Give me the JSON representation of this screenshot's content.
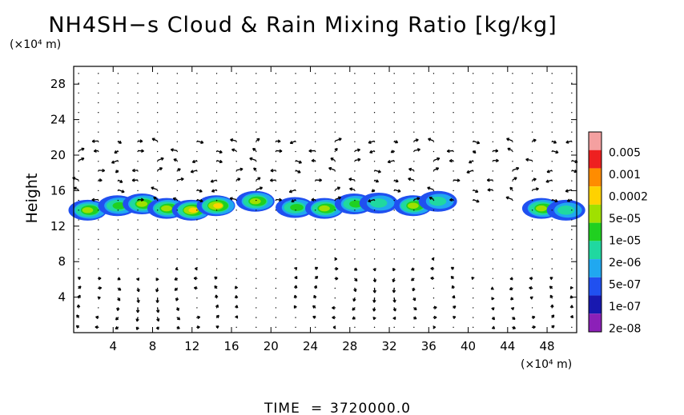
{
  "chart_data": {
    "type": "heatmap",
    "title": "NH4SH−s Cloud & Rain Mixing Ratio [kg/kg]",
    "y_unit": "(×10⁴ m)",
    "x_unit": "(×10⁴ m)",
    "ylabel": "Height",
    "xlabel": "",
    "xlim": [
      0,
      51
    ],
    "ylim": [
      0,
      30
    ],
    "x_ticks": [
      "4",
      "8",
      "12",
      "16",
      "20",
      "24",
      "28",
      "32",
      "36",
      "40",
      "44",
      "48"
    ],
    "y_ticks": [
      "4",
      "8",
      "12",
      "16",
      "20",
      "24",
      "28"
    ],
    "x_tick_values": [
      4,
      8,
      12,
      16,
      20,
      24,
      28,
      32,
      36,
      40,
      44,
      48
    ],
    "y_tick_values": [
      4,
      8,
      12,
      16,
      20,
      24,
      28
    ],
    "colorbar": {
      "labels": [
        "0.005",
        "0.001",
        "0.0002",
        "5e-05",
        "1e-05",
        "2e-06",
        "5e-07",
        "1e-07",
        "2e-08"
      ],
      "colors": [
        "#f4a0a0",
        "#ee2020",
        "#ff8c00",
        "#ffd200",
        "#a0e000",
        "#20d020",
        "#20d8a0",
        "#20a8f0",
        "#2050f0",
        "#1818b0",
        "#8c20b8"
      ]
    },
    "cloud_cells": [
      {
        "x": 1.5,
        "y": 13.8,
        "peak": 5
      },
      {
        "x": 4.5,
        "y": 14.3,
        "peak": 4
      },
      {
        "x": 7.0,
        "y": 14.5,
        "peak": 5
      },
      {
        "x": 9.5,
        "y": 14.0,
        "peak": 5
      },
      {
        "x": 12.0,
        "y": 13.8,
        "peak": 6
      },
      {
        "x": 14.5,
        "y": 14.3,
        "peak": 6
      },
      {
        "x": 18.5,
        "y": 14.8,
        "peak": 5
      },
      {
        "x": 22.5,
        "y": 14.1,
        "peak": 4
      },
      {
        "x": 25.5,
        "y": 14.0,
        "peak": 5
      },
      {
        "x": 28.5,
        "y": 14.5,
        "peak": 4
      },
      {
        "x": 31.0,
        "y": 14.6,
        "peak": 3
      },
      {
        "x": 34.5,
        "y": 14.3,
        "peak": 5
      },
      {
        "x": 37.0,
        "y": 14.8,
        "peak": 3
      },
      {
        "x": 47.5,
        "y": 14.0,
        "peak": 5
      },
      {
        "x": 50.0,
        "y": 13.8,
        "peak": 3
      }
    ],
    "time_label": "TIME",
    "time_value": "3720000.0"
  }
}
